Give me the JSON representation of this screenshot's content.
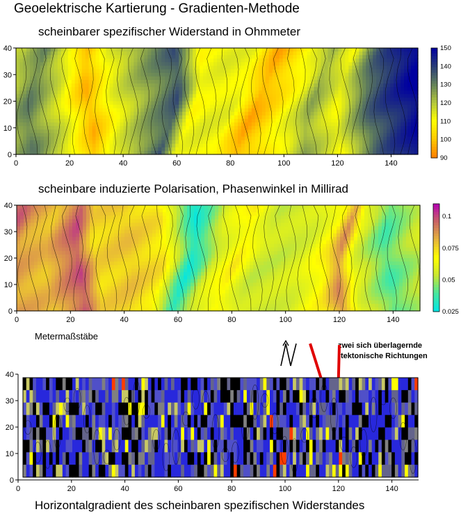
{
  "page_title": "Geoelektrische Kartierung  -  Gradienten-Methode",
  "scale_label": "Metermaßstäbe",
  "north_arrow": "N",
  "annotation": [
    "zwei sich überlagernde",
    "tektonische Richtungen"
  ],
  "caption": "Horizontalgradient des scheinbaren spezifischen Widerstandes",
  "chart_data": [
    {
      "type": "heatmap",
      "title": "scheinbarer spezifischer Widerstand in Ohmmeter",
      "x_ticks": [
        "0",
        "20",
        "40",
        "60",
        "80",
        "100",
        "120",
        "140"
      ],
      "y_ticks": [
        "0",
        "10",
        "20",
        "30",
        "40"
      ],
      "xlim": [
        0,
        150
      ],
      "ylim": [
        0,
        40
      ],
      "colorbar_ticks": [
        "150",
        "140",
        "130",
        "120",
        "110",
        "100",
        "90"
      ],
      "colorbar_range": [
        90,
        150
      ],
      "colors": [
        "#ff7d00",
        "#ffc800",
        "#ffff00",
        "#b4c83c",
        "#64825a",
        "#283c78",
        "#0000a0"
      ],
      "profile_x": [
        0,
        10,
        20,
        28,
        35,
        45,
        55,
        62,
        70,
        80,
        90,
        100,
        110,
        115,
        125,
        135,
        140,
        150
      ],
      "profile_values": [
        118,
        130,
        115,
        98,
        112,
        125,
        136,
        110,
        113,
        112,
        96,
        105,
        115,
        124,
        112,
        134,
        140,
        150
      ]
    },
    {
      "type": "heatmap",
      "title": "scheinbare induzierte Polarisation, Phasenwinkel in Millirad",
      "x_ticks": [
        "0",
        "20",
        "40",
        "60",
        "80",
        "100",
        "120",
        "140"
      ],
      "y_ticks": [
        "0",
        "10",
        "20",
        "30",
        "40"
      ],
      "xlim": [
        0,
        150
      ],
      "ylim": [
        0,
        40
      ],
      "colorbar_ticks": [
        "0.1",
        "0.075",
        "0.05",
        "0.025"
      ],
      "colorbar_range": [
        0.025,
        0.11
      ],
      "colors": [
        "#00e6e6",
        "#46e6a0",
        "#c8e632",
        "#ffff00",
        "#e6b43c",
        "#c86464",
        "#b400b4"
      ],
      "profile_x": [
        0,
        5,
        15,
        25,
        30,
        40,
        50,
        60,
        70,
        80,
        90,
        100,
        110,
        120,
        125,
        130,
        140,
        150
      ],
      "profile_values": [
        0.095,
        0.085,
        0.08,
        0.098,
        0.075,
        0.078,
        0.072,
        0.03,
        0.058,
        0.07,
        0.055,
        0.055,
        0.058,
        0.07,
        0.088,
        0.06,
        0.04,
        0.055
      ]
    },
    {
      "type": "heatmap",
      "title": "Horizontalgradient des scheinbaren spezifischen Widerstandes",
      "x_ticks": [
        "0",
        "20",
        "40",
        "60",
        "80",
        "100",
        "120",
        "140"
      ],
      "y_ticks": [
        "0",
        "10",
        "20",
        "30",
        "40"
      ],
      "xlim": [
        0,
        150
      ],
      "ylim": [
        0,
        40
      ],
      "colors": [
        "#000000",
        "#2828dc",
        "#5050c8",
        "#64648c",
        "#808080",
        "#c8c864",
        "#ffff00",
        "#ff3c00"
      ]
    }
  ]
}
